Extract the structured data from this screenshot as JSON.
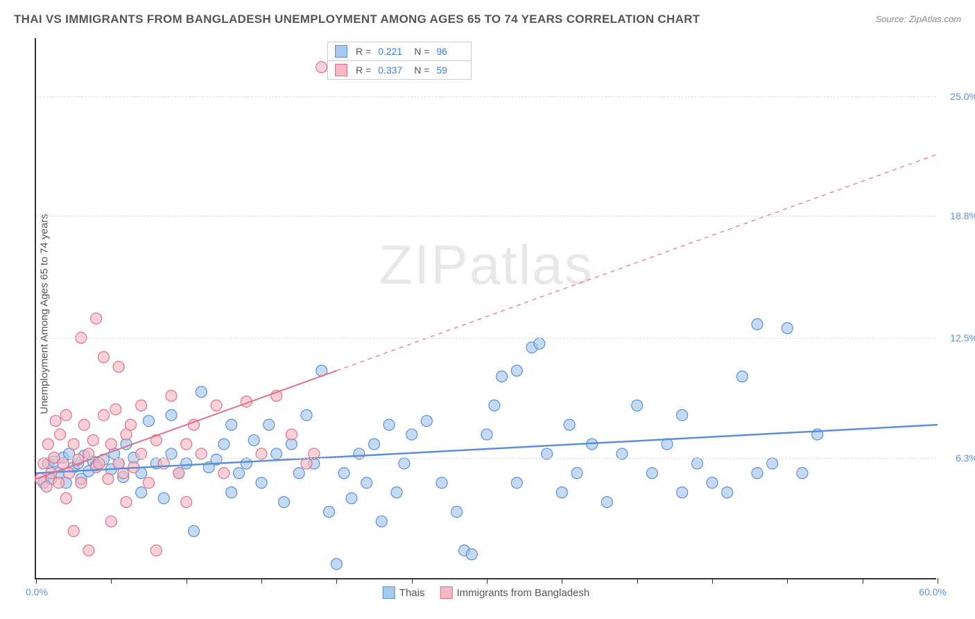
{
  "title": "THAI VS IMMIGRANTS FROM BANGLADESH UNEMPLOYMENT AMONG AGES 65 TO 74 YEARS CORRELATION CHART",
  "source": "Source: ZipAtlas.com",
  "watermark": "ZIPatlas",
  "y_axis_label": "Unemployment Among Ages 65 to 74 years",
  "chart": {
    "type": "scatter-correlation",
    "background_color": "#ffffff",
    "grid_color": "#dddddd",
    "axis_color": "#333333",
    "xlim": [
      0,
      60
    ],
    "ylim": [
      0,
      28
    ],
    "x_min_label": "0.0%",
    "x_max_label": "60.0%",
    "x_ticks": [
      0,
      5,
      10,
      15,
      20,
      25,
      30,
      35,
      40,
      45,
      50,
      55,
      60
    ],
    "y_ticks": [
      {
        "v": 6.3,
        "label": "6.3%"
      },
      {
        "v": 12.5,
        "label": "12.5%"
      },
      {
        "v": 18.8,
        "label": "18.8%"
      },
      {
        "v": 25.0,
        "label": "25.0%"
      }
    ],
    "series": [
      {
        "name": "Thais",
        "color_fill": "#a8c8ec",
        "color_stroke": "#5b8fd6",
        "marker_radius": 8,
        "marker_opacity": 0.65,
        "R": "0.221",
        "N": "96",
        "trend": {
          "x1": 0,
          "y1": 5.5,
          "x2": 60,
          "y2": 8.0,
          "dash": "none",
          "width": 2.5
        },
        "points": [
          [
            0.5,
            5.0
          ],
          [
            0.8,
            6.0
          ],
          [
            1.0,
            5.2
          ],
          [
            1.2,
            6.1
          ],
          [
            1.5,
            5.5
          ],
          [
            1.8,
            6.3
          ],
          [
            2.0,
            5.0
          ],
          [
            2.2,
            6.5
          ],
          [
            2.5,
            5.8
          ],
          [
            2.8,
            6.0
          ],
          [
            3.0,
            5.2
          ],
          [
            3.2,
            6.4
          ],
          [
            3.5,
            5.6
          ],
          [
            3.8,
            6.1
          ],
          [
            4.0,
            5.9
          ],
          [
            4.5,
            6.2
          ],
          [
            5.0,
            5.7
          ],
          [
            5.2,
            6.5
          ],
          [
            5.5,
            6.0
          ],
          [
            5.8,
            5.3
          ],
          [
            6.0,
            7.0
          ],
          [
            6.5,
            6.3
          ],
          [
            7.0,
            5.5
          ],
          [
            7.5,
            8.2
          ],
          [
            7.0,
            4.5
          ],
          [
            8.0,
            6.0
          ],
          [
            8.5,
            4.2
          ],
          [
            9.0,
            6.5
          ],
          [
            9.0,
            8.5
          ],
          [
            9.5,
            5.5
          ],
          [
            10.0,
            6.0
          ],
          [
            10.5,
            2.5
          ],
          [
            11.0,
            9.7
          ],
          [
            11.5,
            5.8
          ],
          [
            12.0,
            6.2
          ],
          [
            12.5,
            7.0
          ],
          [
            13.0,
            8.0
          ],
          [
            13.0,
            4.5
          ],
          [
            13.5,
            5.5
          ],
          [
            14.0,
            6.0
          ],
          [
            14.5,
            7.2
          ],
          [
            15.0,
            5.0
          ],
          [
            15.5,
            8.0
          ],
          [
            16.0,
            6.5
          ],
          [
            16.5,
            4.0
          ],
          [
            17.0,
            7.0
          ],
          [
            17.5,
            5.5
          ],
          [
            18.0,
            8.5
          ],
          [
            18.5,
            6.0
          ],
          [
            19.0,
            10.8
          ],
          [
            19.5,
            3.5
          ],
          [
            20.0,
            0.8
          ],
          [
            20.5,
            5.5
          ],
          [
            21.0,
            4.2
          ],
          [
            21.5,
            6.5
          ],
          [
            22.0,
            5.0
          ],
          [
            22.5,
            7.0
          ],
          [
            23.0,
            3.0
          ],
          [
            23.5,
            8.0
          ],
          [
            24.0,
            4.5
          ],
          [
            24.5,
            6.0
          ],
          [
            25.0,
            7.5
          ],
          [
            26.0,
            8.2
          ],
          [
            27.0,
            5.0
          ],
          [
            28.0,
            3.5
          ],
          [
            28.5,
            1.5
          ],
          [
            29.0,
            1.3
          ],
          [
            30.0,
            7.5
          ],
          [
            30.5,
            9.0
          ],
          [
            31.0,
            10.5
          ],
          [
            32.0,
            5.0
          ],
          [
            33.0,
            12.0
          ],
          [
            33.5,
            12.2
          ],
          [
            34.0,
            6.5
          ],
          [
            35.0,
            4.5
          ],
          [
            35.5,
            8.0
          ],
          [
            36.0,
            5.5
          ],
          [
            37.0,
            7.0
          ],
          [
            38.0,
            4.0
          ],
          [
            39.0,
            6.5
          ],
          [
            40.0,
            9.0
          ],
          [
            41.0,
            5.5
          ],
          [
            42.0,
            7.0
          ],
          [
            43.0,
            4.5
          ],
          [
            44.0,
            6.0
          ],
          [
            45.0,
            5.0
          ],
          [
            46.0,
            4.5
          ],
          [
            47.0,
            10.5
          ],
          [
            48.0,
            5.5
          ],
          [
            49.0,
            6.0
          ],
          [
            50.0,
            13.0
          ],
          [
            51.0,
            5.5
          ],
          [
            52.0,
            7.5
          ],
          [
            43.0,
            8.5
          ],
          [
            48.0,
            13.2
          ],
          [
            32.0,
            10.8
          ]
        ]
      },
      {
        "name": "Immigrants from Bangladesh",
        "color_fill": "#f5b8c5",
        "color_stroke": "#e0708a",
        "marker_radius": 8,
        "marker_opacity": 0.65,
        "R": "0.337",
        "N": "59",
        "trend": {
          "x1": 0,
          "y1": 5.2,
          "x2": 60,
          "y2": 22.0,
          "dash_from_x": 20,
          "width": 2
        },
        "points": [
          [
            0.3,
            5.2
          ],
          [
            0.5,
            6.0
          ],
          [
            0.7,
            4.8
          ],
          [
            0.8,
            7.0
          ],
          [
            1.0,
            5.5
          ],
          [
            1.2,
            6.3
          ],
          [
            1.3,
            8.2
          ],
          [
            1.5,
            5.0
          ],
          [
            1.6,
            7.5
          ],
          [
            1.8,
            6.0
          ],
          [
            2.0,
            8.5
          ],
          [
            2.0,
            4.2
          ],
          [
            2.2,
            5.5
          ],
          [
            2.5,
            7.0
          ],
          [
            2.5,
            2.5
          ],
          [
            2.8,
            6.2
          ],
          [
            3.0,
            12.5
          ],
          [
            3.0,
            5.0
          ],
          [
            3.2,
            8.0
          ],
          [
            3.5,
            6.5
          ],
          [
            3.5,
            1.5
          ],
          [
            3.8,
            7.2
          ],
          [
            4.0,
            5.8
          ],
          [
            4.0,
            13.5
          ],
          [
            4.2,
            6.0
          ],
          [
            4.5,
            8.5
          ],
          [
            4.5,
            11.5
          ],
          [
            4.8,
            5.2
          ],
          [
            5.0,
            7.0
          ],
          [
            5.0,
            3.0
          ],
          [
            5.3,
            8.8
          ],
          [
            5.5,
            6.0
          ],
          [
            5.5,
            11.0
          ],
          [
            5.8,
            5.5
          ],
          [
            6.0,
            7.5
          ],
          [
            6.0,
            4.0
          ],
          [
            6.3,
            8.0
          ],
          [
            6.5,
            5.8
          ],
          [
            7.0,
            6.5
          ],
          [
            7.0,
            9.0
          ],
          [
            7.5,
            5.0
          ],
          [
            8.0,
            7.2
          ],
          [
            8.0,
            1.5
          ],
          [
            8.5,
            6.0
          ],
          [
            9.0,
            9.5
          ],
          [
            9.5,
            5.5
          ],
          [
            10.0,
            7.0
          ],
          [
            10.0,
            4.0
          ],
          [
            10.5,
            8.0
          ],
          [
            11.0,
            6.5
          ],
          [
            12.0,
            9.0
          ],
          [
            12.5,
            5.5
          ],
          [
            14.0,
            9.2
          ],
          [
            15.0,
            6.5
          ],
          [
            16.0,
            9.5
          ],
          [
            17.0,
            7.5
          ],
          [
            18.0,
            6.0
          ],
          [
            18.5,
            6.5
          ],
          [
            19.0,
            26.5
          ]
        ]
      }
    ]
  },
  "legend_bottom": [
    {
      "label": "Thais",
      "fill": "#a8c8ec",
      "stroke": "#5b8fd6"
    },
    {
      "label": "Immigrants from Bangladesh",
      "fill": "#f5b8c5",
      "stroke": "#e0708a"
    }
  ]
}
